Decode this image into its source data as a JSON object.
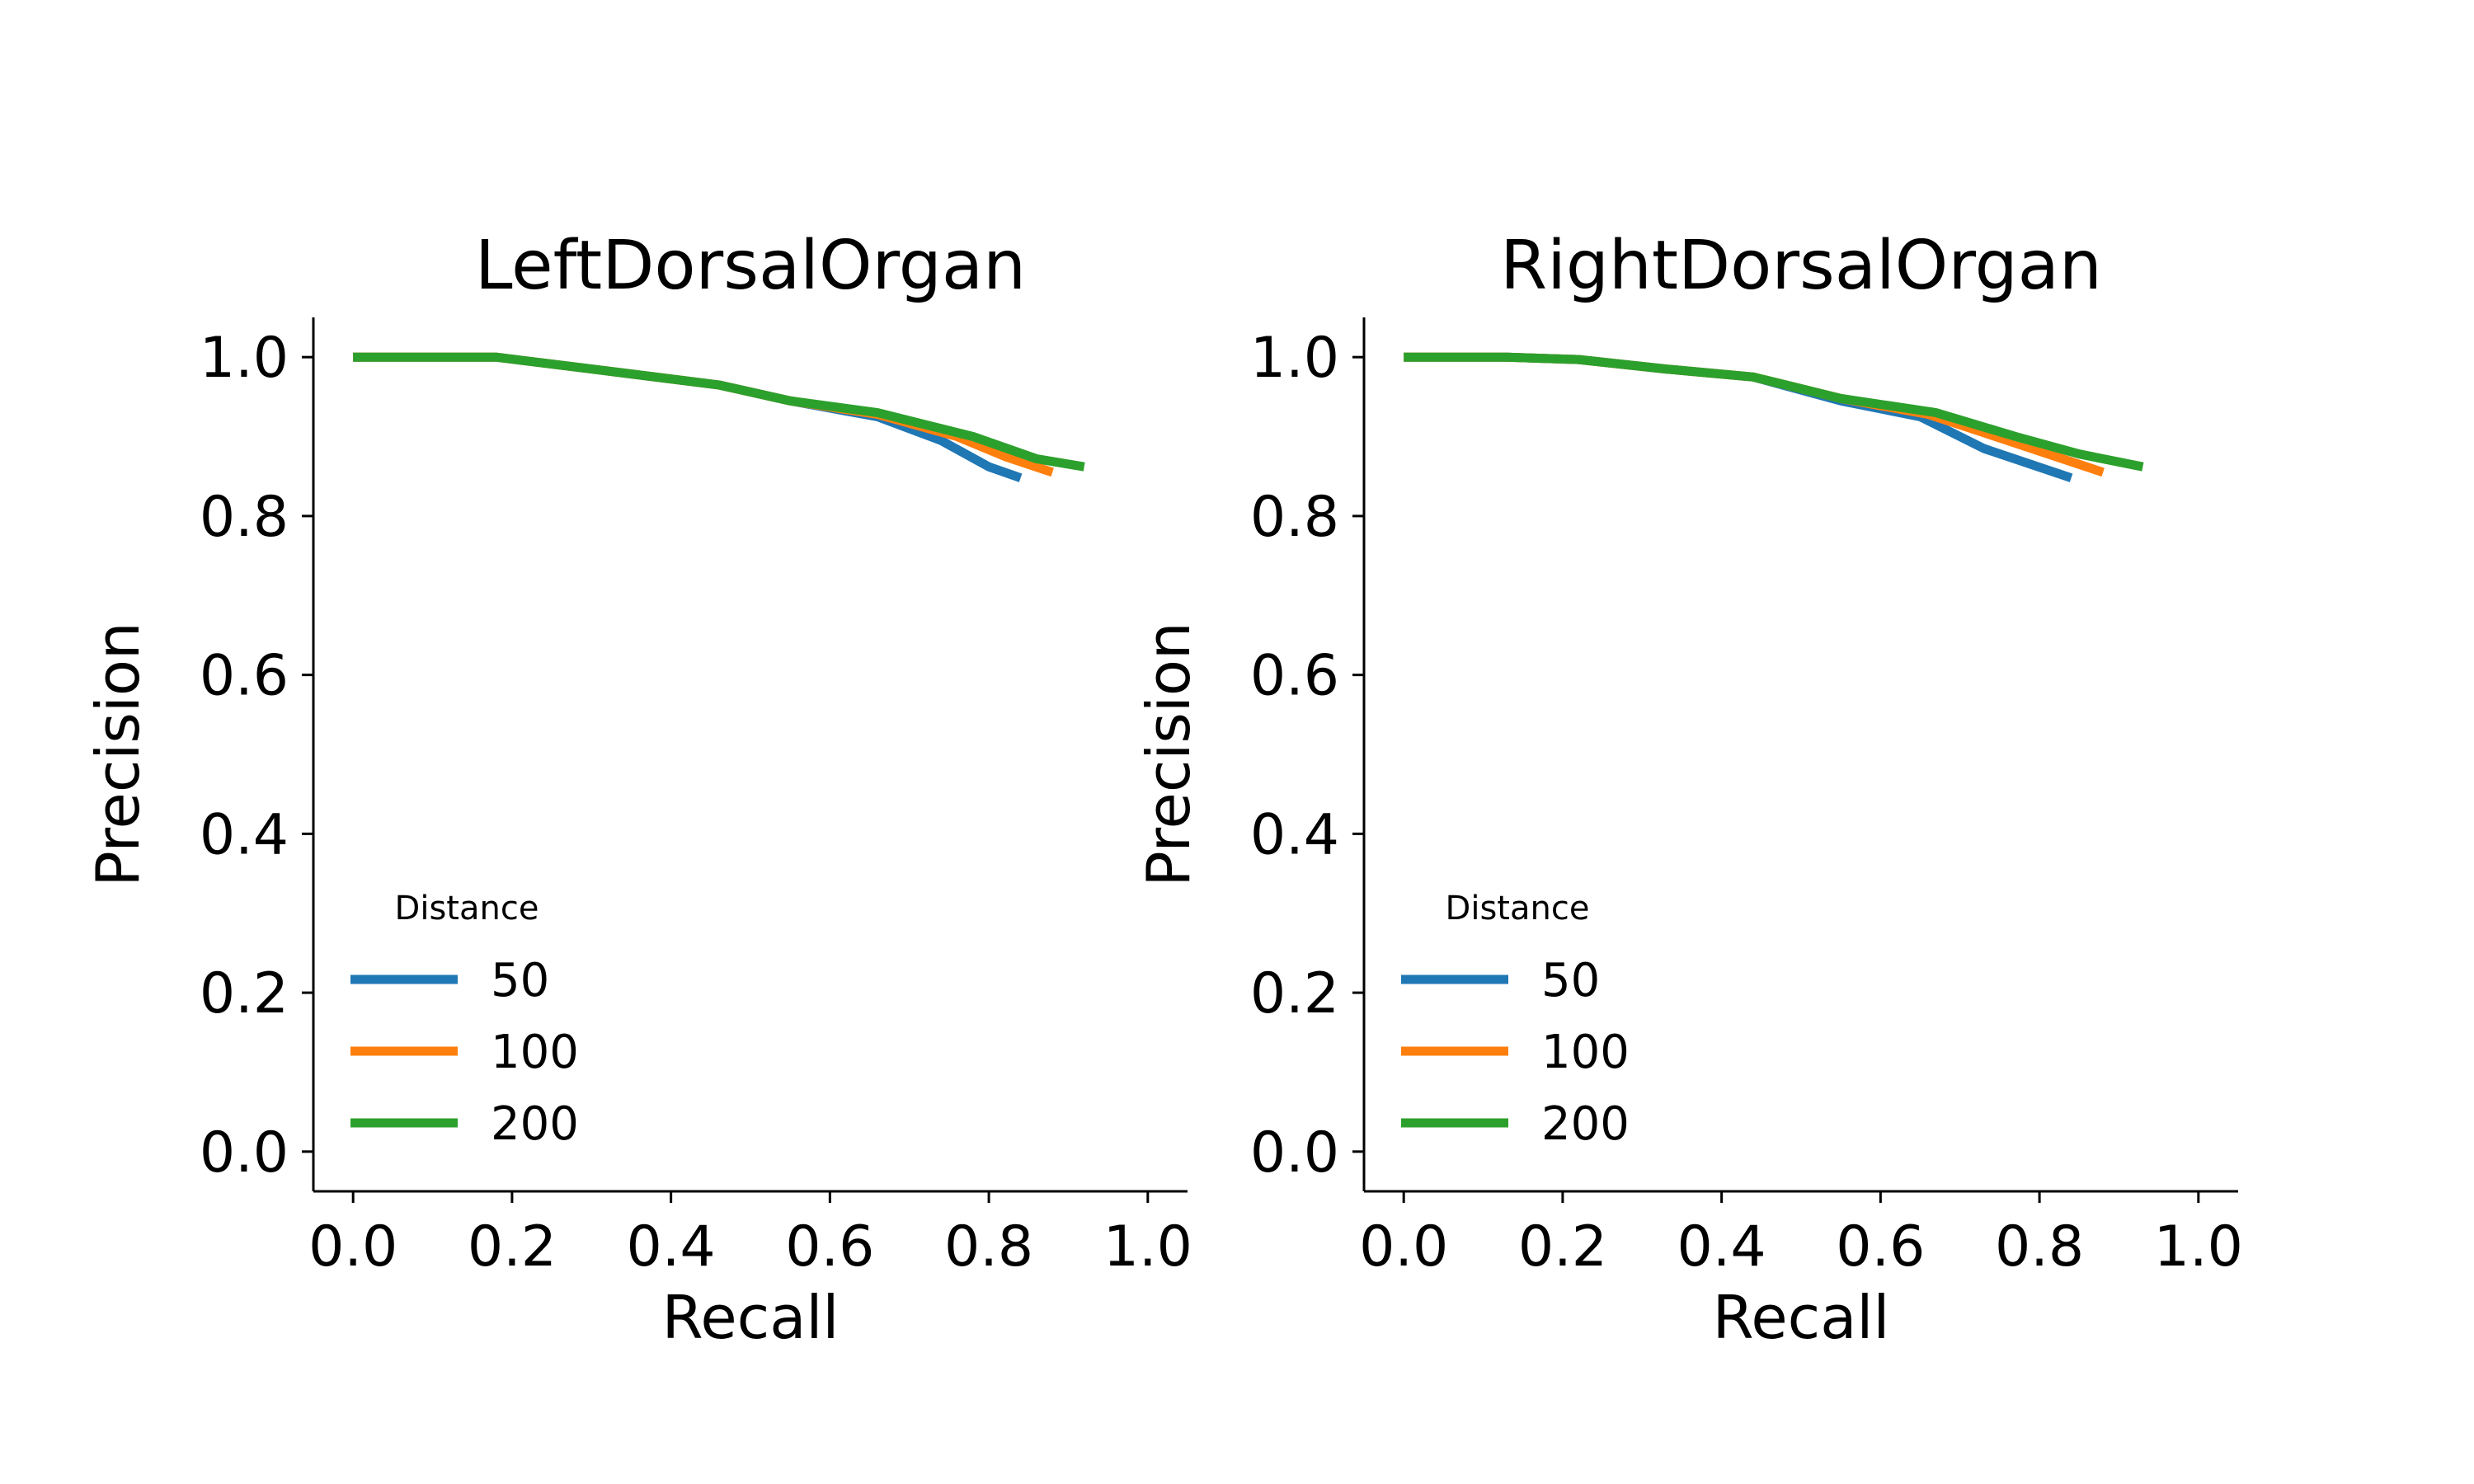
{
  "chart_data": [
    {
      "type": "line",
      "title": "LeftDorsalOrgan",
      "xlabel": "Recall",
      "ylabel": "Precision",
      "xlim": [
        -0.05,
        1.05
      ],
      "ylim": [
        -0.05,
        1.05
      ],
      "xticks": [
        "0.0",
        "0.2",
        "0.4",
        "0.6",
        "0.8",
        "1.0"
      ],
      "yticks": [
        "0.0",
        "0.2",
        "0.4",
        "0.6",
        "0.8",
        "1.0"
      ],
      "grid": false,
      "legend": {
        "title": "Distance",
        "placement": "lower-left"
      },
      "series": [
        {
          "name": "50",
          "color": "#1f77b4",
          "x": [
            0.0,
            0.18,
            0.3,
            0.46,
            0.55,
            0.66,
            0.74,
            0.8,
            0.84
          ],
          "y": [
            1.0,
            1.0,
            0.985,
            0.965,
            0.945,
            0.925,
            0.895,
            0.862,
            0.848
          ]
        },
        {
          "name": "100",
          "color": "#ff7f0e",
          "x": [
            0.0,
            0.18,
            0.3,
            0.46,
            0.55,
            0.66,
            0.76,
            0.82,
            0.88
          ],
          "y": [
            1.0,
            1.0,
            0.985,
            0.965,
            0.945,
            0.928,
            0.9,
            0.875,
            0.855
          ]
        },
        {
          "name": "200",
          "color": "#2ca02c",
          "x": [
            0.0,
            0.18,
            0.3,
            0.46,
            0.55,
            0.66,
            0.78,
            0.86,
            0.92
          ],
          "y": [
            1.0,
            1.0,
            0.985,
            0.965,
            0.945,
            0.93,
            0.9,
            0.872,
            0.862
          ]
        }
      ]
    },
    {
      "type": "line",
      "title": "RightDorsalOrgan",
      "xlabel": "Recall",
      "ylabel": "Precision",
      "xlim": [
        -0.05,
        1.05
      ],
      "ylim": [
        -0.05,
        1.05
      ],
      "xticks": [
        "0.0",
        "0.2",
        "0.4",
        "0.6",
        "0.8",
        "1.0"
      ],
      "yticks": [
        "0.0",
        "0.2",
        "0.4",
        "0.6",
        "0.8",
        "1.0"
      ],
      "grid": false,
      "legend": {
        "title": "Distance",
        "placement": "lower-left"
      },
      "series": [
        {
          "name": "50",
          "color": "#1f77b4",
          "x": [
            0.0,
            0.13,
            0.22,
            0.33,
            0.44,
            0.55,
            0.65,
            0.73,
            0.84
          ],
          "y": [
            1.0,
            1.0,
            0.997,
            0.985,
            0.975,
            0.945,
            0.925,
            0.885,
            0.848
          ]
        },
        {
          "name": "100",
          "color": "#ff7f0e",
          "x": [
            0.0,
            0.13,
            0.22,
            0.33,
            0.44,
            0.55,
            0.66,
            0.76,
            0.88
          ],
          "y": [
            1.0,
            1.0,
            0.997,
            0.985,
            0.975,
            0.948,
            0.928,
            0.895,
            0.855
          ]
        },
        {
          "name": "200",
          "color": "#2ca02c",
          "x": [
            0.0,
            0.13,
            0.22,
            0.33,
            0.44,
            0.55,
            0.67,
            0.77,
            0.85,
            0.93
          ],
          "y": [
            1.0,
            1.0,
            0.997,
            0.985,
            0.975,
            0.948,
            0.93,
            0.9,
            0.878,
            0.862
          ]
        }
      ]
    }
  ]
}
